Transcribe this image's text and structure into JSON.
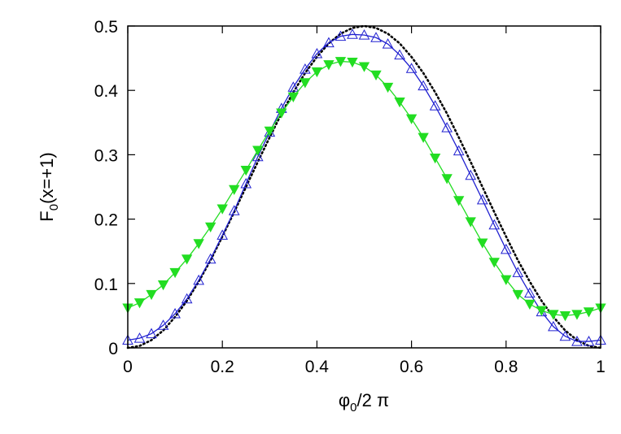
{
  "chart_data": {
    "type": "line",
    "xlabel": {
      "main": "φ",
      "sub": "0",
      "rest": "/2 π"
    },
    "ylabel": {
      "main": "F",
      "sub": "0",
      "rest": "(x=+1)"
    },
    "xlim": [
      0,
      1
    ],
    "ylim": [
      0,
      0.5
    ],
    "xticks": [
      {
        "value": 0,
        "label": "0"
      },
      {
        "value": 0.2,
        "label": "0.2"
      },
      {
        "value": 0.4,
        "label": "0.4"
      },
      {
        "value": 0.6,
        "label": "0.6"
      },
      {
        "value": 0.8,
        "label": "0.8"
      },
      {
        "value": 1,
        "label": "1"
      }
    ],
    "yticks": [
      {
        "value": 0,
        "label": "0"
      },
      {
        "value": 0.1,
        "label": "0.1"
      },
      {
        "value": 0.2,
        "label": "0.2"
      },
      {
        "value": 0.3,
        "label": "0.3"
      },
      {
        "value": 0.4,
        "label": "0.4"
      },
      {
        "value": 0.5,
        "label": "0.5"
      }
    ],
    "grid": false,
    "series": [
      {
        "color": "#000000",
        "style": "dotted",
        "marker": "none",
        "x": [
          0,
          0.025,
          0.05,
          0.075,
          0.1,
          0.125,
          0.15,
          0.175,
          0.2,
          0.225,
          0.25,
          0.275,
          0.3,
          0.325,
          0.35,
          0.375,
          0.4,
          0.425,
          0.45,
          0.475,
          0.5,
          0.525,
          0.55,
          0.575,
          0.6,
          0.625,
          0.65,
          0.675,
          0.7,
          0.725,
          0.75,
          0.775,
          0.8,
          0.825,
          0.85,
          0.875,
          0.9,
          0.925,
          0.95,
          0.975,
          1
        ],
        "y": [
          0,
          0.003,
          0.012,
          0.027,
          0.048,
          0.073,
          0.103,
          0.136,
          0.173,
          0.211,
          0.25,
          0.289,
          0.327,
          0.364,
          0.397,
          0.427,
          0.452,
          0.473,
          0.488,
          0.497,
          0.5,
          0.497,
          0.488,
          0.473,
          0.452,
          0.427,
          0.397,
          0.364,
          0.327,
          0.289,
          0.25,
          0.211,
          0.173,
          0.136,
          0.103,
          0.073,
          0.048,
          0.027,
          0.012,
          0.003,
          0
        ]
      },
      {
        "color": "#2020d0",
        "style": "solid",
        "marker": "open-triangle-up",
        "x": [
          0,
          0.025,
          0.05,
          0.075,
          0.1,
          0.125,
          0.15,
          0.175,
          0.2,
          0.225,
          0.25,
          0.275,
          0.3,
          0.325,
          0.35,
          0.375,
          0.4,
          0.425,
          0.45,
          0.475,
          0.5,
          0.525,
          0.55,
          0.575,
          0.6,
          0.625,
          0.65,
          0.675,
          0.7,
          0.725,
          0.75,
          0.775,
          0.8,
          0.825,
          0.85,
          0.875,
          0.9,
          0.925,
          0.95,
          0.975,
          1
        ],
        "y": [
          0.012,
          0.015,
          0.022,
          0.035,
          0.053,
          0.076,
          0.105,
          0.138,
          0.175,
          0.213,
          0.255,
          0.297,
          0.335,
          0.372,
          0.405,
          0.433,
          0.457,
          0.474,
          0.484,
          0.487,
          0.486,
          0.482,
          0.472,
          0.455,
          0.434,
          0.407,
          0.376,
          0.342,
          0.306,
          0.268,
          0.23,
          0.191,
          0.153,
          0.117,
          0.085,
          0.056,
          0.033,
          0.018,
          0.01,
          0.01,
          0.012
        ]
      },
      {
        "color": "#22dd22",
        "style": "solid",
        "marker": "filled-triangle-down",
        "x": [
          0,
          0.025,
          0.05,
          0.075,
          0.1,
          0.125,
          0.15,
          0.175,
          0.2,
          0.225,
          0.25,
          0.275,
          0.3,
          0.325,
          0.35,
          0.375,
          0.4,
          0.425,
          0.45,
          0.475,
          0.5,
          0.525,
          0.55,
          0.575,
          0.6,
          0.625,
          0.65,
          0.675,
          0.7,
          0.725,
          0.75,
          0.775,
          0.8,
          0.825,
          0.85,
          0.875,
          0.9,
          0.925,
          0.95,
          0.975,
          1
        ],
        "y": [
          0.062,
          0.07,
          0.083,
          0.098,
          0.117,
          0.138,
          0.162,
          0.188,
          0.216,
          0.246,
          0.276,
          0.307,
          0.337,
          0.365,
          0.39,
          0.412,
          0.429,
          0.44,
          0.445,
          0.444,
          0.437,
          0.424,
          0.405,
          0.382,
          0.356,
          0.327,
          0.295,
          0.263,
          0.229,
          0.196,
          0.163,
          0.133,
          0.106,
          0.083,
          0.068,
          0.058,
          0.052,
          0.05,
          0.052,
          0.056,
          0.062
        ]
      }
    ]
  }
}
